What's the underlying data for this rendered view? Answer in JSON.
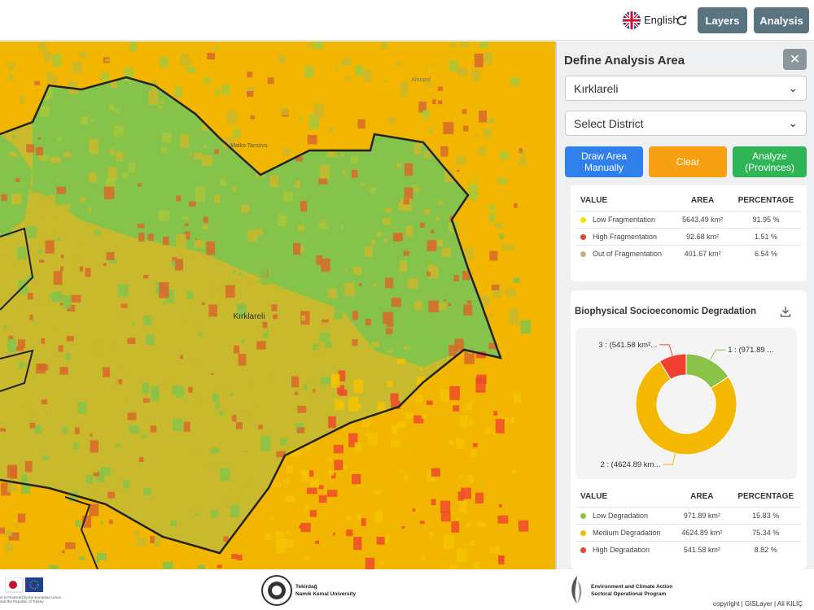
{
  "header": {
    "language": "English",
    "buttons": [
      "Layers",
      "Analysis"
    ]
  },
  "map": {
    "labels": [
      "Kırklareli",
      "Malko Tarnovo",
      "Ahtopol"
    ]
  },
  "panel": {
    "title": "Define Analysis Area",
    "province_select": "Kırklareli",
    "district_select": "Select District",
    "buttons": [
      "Draw Area Manually",
      "Clear",
      "Analyze (Provinces)"
    ],
    "fragmentation_table": {
      "header": [
        "VALUE",
        "AREA",
        "PERCENTAGE"
      ],
      "rows": [
        {
          "color": "#f2e600",
          "cells": [
            "Low Fragmentation",
            "5643.49 km²",
            "91.95 %"
          ]
        },
        {
          "color": "#e8432c",
          "cells": [
            "High Fragmentation",
            "92.68 km²",
            "1.51 %"
          ]
        },
        {
          "color": "#c2b28a",
          "cells": [
            "Out of Fragmentation",
            "401.67 km²",
            "6.54 %"
          ]
        }
      ]
    },
    "degradation": {
      "title": "Biophysical Socioeconomic Degradation",
      "chart_data": {
        "type": "donut",
        "values": [
          971.89,
          4624.89,
          541.58
        ],
        "value_labels": [
          "1 : (971.89 ...",
          "2 : (4624.89 km...",
          "3 : (541.58 km²..."
        ],
        "colors": [
          "#8bc34a",
          "#f5b800",
          "#f24030"
        ]
      },
      "table": {
        "header": [
          "VALUE",
          "AREA",
          "PERCENTAGE"
        ],
        "rows": [
          {
            "color": "#8bc34a",
            "cells": [
              "Low Degradation",
              "971.89 km²",
              "15.83 %"
            ]
          },
          {
            "color": "#f5b800",
            "cells": [
              "Medium Degradation",
              "4624.89 km²",
              "75.34 %"
            ]
          },
          {
            "color": "#f24030",
            "cells": [
              "High Degradation",
              "541.58 km²",
              "8.82 %"
            ]
          }
        ]
      }
    }
  },
  "footer": {
    "eu_note": "ct is Financed by the European Union and the Republic of Turkey",
    "university": [
      "Tekirdağ",
      "Namık Kemal University"
    ],
    "program": [
      "Environment and Climate Action",
      "Sectoral Operational Program"
    ],
    "copyright": "copyright | GISLayer | Ali KILIÇ"
  }
}
